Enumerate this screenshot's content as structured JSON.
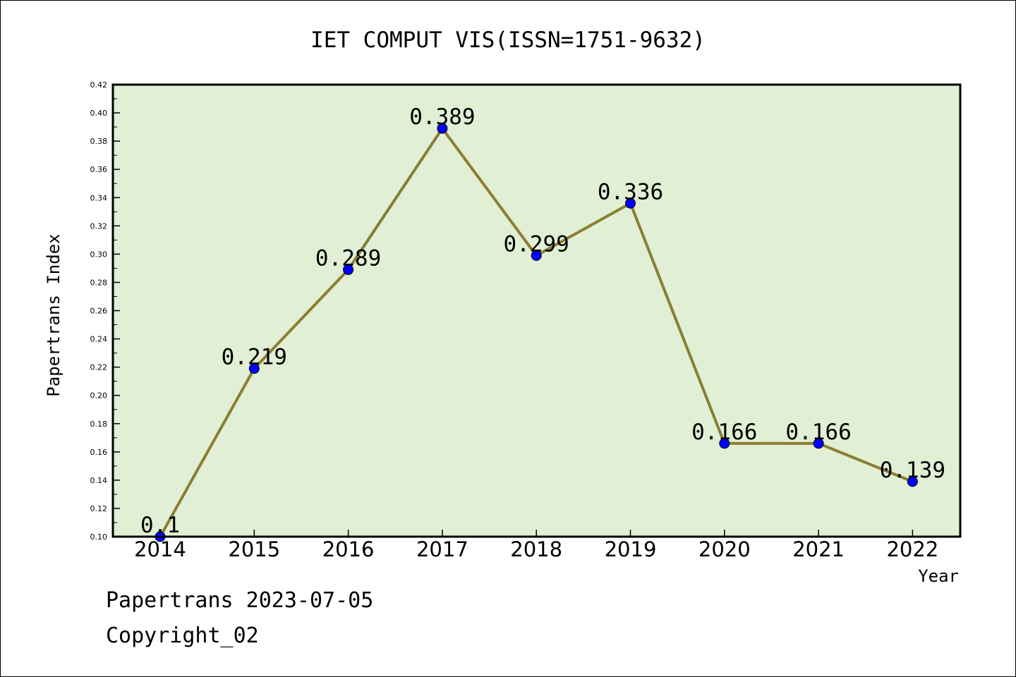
{
  "chart_data": {
    "type": "line",
    "title": "IET COMPUT VIS(ISSN=1751-9632)",
    "xlabel": "Year",
    "ylabel": "Papertrans Index",
    "categories": [
      "2014",
      "2015",
      "2016",
      "2017",
      "2018",
      "2019",
      "2020",
      "2021",
      "2022"
    ],
    "values": [
      0.1,
      0.219,
      0.289,
      0.389,
      0.299,
      0.336,
      0.166,
      0.166,
      0.139
    ],
    "data_labels": [
      "0.1",
      "0.219",
      "0.289",
      "0.389",
      "0.299",
      "0.336",
      "0.166",
      "0.166",
      "0.139"
    ],
    "ylim": [
      0.1,
      0.42
    ],
    "yticks": [
      "0.10",
      "0.12",
      "0.14",
      "0.16",
      "0.18",
      "0.20",
      "0.22",
      "0.24",
      "0.26",
      "0.28",
      "0.30",
      "0.32",
      "0.34",
      "0.36",
      "0.38",
      "0.40",
      "0.42"
    ],
    "grid": false,
    "colors": {
      "plot_background": "#e1efd4",
      "line": "#8b7d33",
      "marker": "#0000ff"
    }
  },
  "footer": {
    "line1": "Papertrans 2023-07-05",
    "line2": "Copyright_02"
  }
}
